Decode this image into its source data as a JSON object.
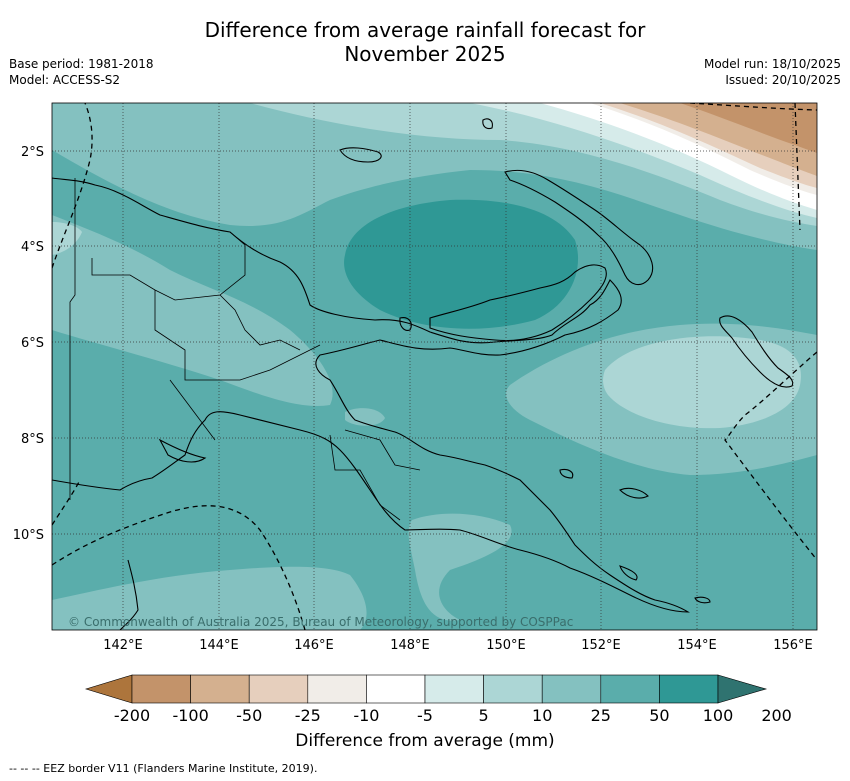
{
  "title": {
    "line1": "Difference from average rainfall forecast for",
    "line2": "November 2025"
  },
  "meta_left": {
    "base_period": "Base period: 1981-2018",
    "model": "Model: ACCESS-S2"
  },
  "meta_right": {
    "model_run": "Model run: 18/10/2025",
    "issued": "Issued: 20/10/2025"
  },
  "map": {
    "lat_labels": [
      "2°S",
      "4°S",
      "6°S",
      "8°S",
      "10°S"
    ],
    "lon_labels": [
      "142°E",
      "144°E",
      "146°E",
      "148°E",
      "150°E",
      "152°E",
      "154°E",
      "156°E"
    ],
    "copyright": "© Commonwealth of Australia 2025, Bureau of Meteorology, supported by COSPPac"
  },
  "colorbar": {
    "ticks": [
      "-200",
      "-100",
      "-50",
      "-25",
      "-10",
      "-5",
      "5",
      "10",
      "25",
      "50",
      "100",
      "200"
    ],
    "colors": [
      "#ad753c",
      "#c3936a",
      "#d4b08f",
      "#e6cfbd",
      "#f1ede8",
      "#ffffff",
      "#d6ebea",
      "#acd6d5",
      "#84c1c0",
      "#5aadab",
      "#2f9895",
      "#2f7370"
    ],
    "label": "Difference from average (mm)"
  },
  "footnote": "--  --  -- EEZ border V11 (Flanders Marine Institute, 2019)."
}
